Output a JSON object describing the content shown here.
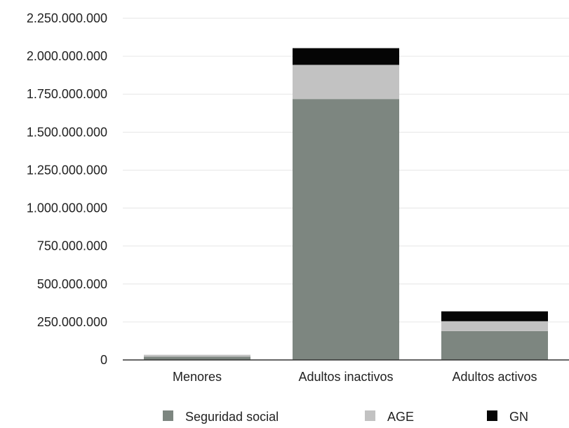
{
  "chart_data": {
    "type": "bar",
    "stacked": true,
    "categories": [
      "Menores",
      "Adultos inactivos",
      "Adultos activos"
    ],
    "series": [
      {
        "name": "Seguridad social",
        "color": "#7d8680",
        "values": [
          22000000,
          1718000000,
          190000000
        ]
      },
      {
        "name": "AGE",
        "color": "#c2c2c2",
        "values": [
          12000000,
          225000000,
          65000000
        ]
      },
      {
        "name": "GN",
        "color": "#050505",
        "values": [
          0,
          110000000,
          65000000
        ]
      }
    ],
    "ylim": [
      0,
      2250000000
    ],
    "yticks": [
      0,
      250000000,
      500000000,
      750000000,
      1000000000,
      1250000000,
      1500000000,
      1750000000,
      2000000000,
      2250000000
    ],
    "ytick_labels": [
      "0",
      "250.000.000",
      "500.000.000",
      "750.000.000",
      "1.000.000.000",
      "1.250.000.000",
      "1.500.000.000",
      "1.750.000.000",
      "2.000.000.000",
      "2.250.000.000"
    ],
    "grid": true,
    "legend_position": "bottom"
  }
}
